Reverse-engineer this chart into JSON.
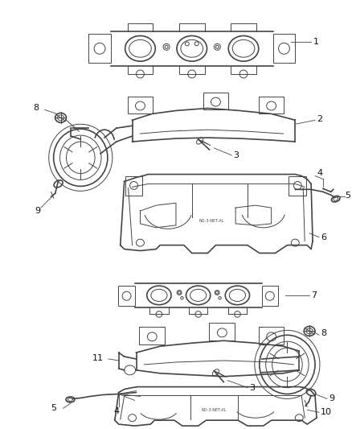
{
  "background_color": "#ffffff",
  "line_color": "#444444",
  "fig_width": 4.38,
  "fig_height": 5.33,
  "dpi": 100
}
